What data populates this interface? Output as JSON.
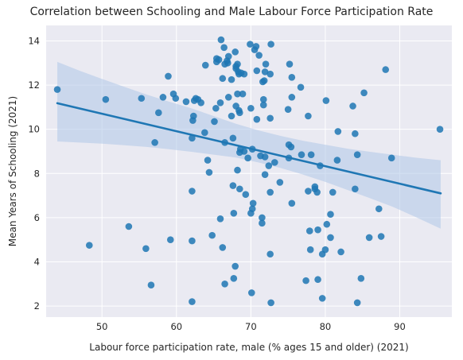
{
  "chart_data": {
    "type": "scatter",
    "title": "Correlation between Schooling and Male Labour Force Participation Rate",
    "xlabel": "Labour force participation rate, male (% ages 15 and older) (2021)",
    "ylabel": "Mean Years of Schooling (2021)",
    "xlim": [
      42.5,
      97.0
    ],
    "ylim": [
      1.5,
      14.7
    ],
    "xticks": [
      50,
      60,
      70,
      80,
      90
    ],
    "yticks": [
      2,
      4,
      6,
      8,
      10,
      12,
      14
    ],
    "grid": true,
    "colors": {
      "points": "#1f77b4",
      "regression_line": "#1f77b4",
      "confidence_band": "#aec7e8",
      "plot_background": "#eaeaf2",
      "grid": "#ffffff"
    },
    "regression": {
      "x": [
        44.0,
        95.5
      ],
      "y": [
        11.18,
        7.1
      ]
    },
    "confidence_band": {
      "x": [
        44.0,
        47.0,
        50.0,
        53.0,
        56.0,
        59.0,
        62.0,
        65.0,
        68.0,
        71.0,
        74.0,
        77.0,
        80.0,
        83.0,
        86.0,
        89.0,
        92.0,
        95.5
      ],
      "upper": [
        13.05,
        12.65,
        12.28,
        11.92,
        11.57,
        11.25,
        10.95,
        10.6,
        10.25,
        9.95,
        9.7,
        9.48,
        9.3,
        9.12,
        8.98,
        8.85,
        8.72,
        8.6
      ],
      "lower": [
        9.45,
        9.4,
        9.35,
        9.28,
        9.2,
        9.1,
        8.98,
        8.85,
        8.72,
        8.5,
        8.25,
        7.95,
        7.62,
        7.25,
        6.88,
        6.5,
        6.05,
        5.5
      ]
    },
    "points": [
      [
        44.0,
        11.8
      ],
      [
        48.3,
        4.75
      ],
      [
        50.5,
        11.35
      ],
      [
        53.6,
        5.6
      ],
      [
        55.3,
        11.4
      ],
      [
        55.9,
        4.6
      ],
      [
        56.6,
        2.95
      ],
      [
        57.1,
        9.4
      ],
      [
        57.6,
        10.75
      ],
      [
        58.2,
        11.45
      ],
      [
        58.9,
        12.4
      ],
      [
        59.2,
        5.0
      ],
      [
        59.6,
        11.6
      ],
      [
        59.9,
        11.4
      ],
      [
        61.3,
        11.25
      ],
      [
        62.1,
        9.6
      ],
      [
        62.1,
        7.2
      ],
      [
        62.1,
        4.95
      ],
      [
        62.1,
        2.2
      ],
      [
        62.2,
        10.4
      ],
      [
        62.3,
        10.6
      ],
      [
        62.4,
        11.3
      ],
      [
        62.6,
        11.4
      ],
      [
        62.9,
        11.35
      ],
      [
        63.3,
        11.2
      ],
      [
        63.8,
        9.85
      ],
      [
        63.9,
        12.9
      ],
      [
        64.2,
        8.6
      ],
      [
        64.4,
        8.05
      ],
      [
        64.8,
        5.2
      ],
      [
        65.1,
        10.35
      ],
      [
        65.3,
        10.95
      ],
      [
        65.4,
        13.05
      ],
      [
        65.4,
        13.2
      ],
      [
        65.7,
        13.15
      ],
      [
        65.9,
        11.2
      ],
      [
        65.9,
        5.95
      ],
      [
        66.0,
        14.05
      ],
      [
        66.2,
        4.65
      ],
      [
        66.2,
        12.3
      ],
      [
        66.4,
        13.7
      ],
      [
        66.5,
        12.95
      ],
      [
        66.5,
        9.4
      ],
      [
        66.5,
        3.0
      ],
      [
        66.8,
        13.1
      ],
      [
        66.9,
        13.0
      ],
      [
        67.0,
        13.3
      ],
      [
        67.0,
        11.45
      ],
      [
        67.4,
        12.25
      ],
      [
        67.4,
        10.6
      ],
      [
        67.6,
        9.6
      ],
      [
        67.6,
        7.45
      ],
      [
        67.7,
        6.2
      ],
      [
        67.7,
        3.25
      ],
      [
        67.9,
        3.8
      ],
      [
        67.9,
        13.5
      ],
      [
        68.0,
        12.85
      ],
      [
        68.0,
        12.75
      ],
      [
        68.0,
        11.05
      ],
      [
        68.2,
        12.95
      ],
      [
        68.2,
        11.6
      ],
      [
        68.2,
        8.15
      ],
      [
        68.3,
        12.6
      ],
      [
        68.4,
        12.5
      ],
      [
        68.4,
        10.85
      ],
      [
        68.5,
        10.75
      ],
      [
        68.5,
        8.95
      ],
      [
        68.5,
        7.3
      ],
      [
        68.6,
        9.1
      ],
      [
        68.7,
        12.55
      ],
      [
        68.9,
        11.6
      ],
      [
        69.1,
        12.5
      ],
      [
        69.1,
        9.0
      ],
      [
        69.3,
        7.05
      ],
      [
        69.6,
        8.7
      ],
      [
        69.9,
        13.85
      ],
      [
        70.0,
        10.95
      ],
      [
        70.0,
        6.2
      ],
      [
        70.1,
        2.6
      ],
      [
        70.2,
        6.4
      ],
      [
        70.2,
        9.1
      ],
      [
        70.3,
        6.65
      ],
      [
        70.5,
        13.6
      ],
      [
        70.7,
        13.75
      ],
      [
        70.8,
        10.45
      ],
      [
        70.8,
        12.65
      ],
      [
        71.1,
        13.35
      ],
      [
        71.3,
        8.8
      ],
      [
        71.5,
        6.0
      ],
      [
        71.5,
        5.75
      ],
      [
        71.6,
        12.15
      ],
      [
        71.7,
        11.35
      ],
      [
        71.7,
        11.1
      ],
      [
        71.8,
        12.2
      ],
      [
        71.9,
        12.6
      ],
      [
        71.9,
        8.75
      ],
      [
        71.9,
        7.95
      ],
      [
        72.0,
        12.95
      ],
      [
        72.4,
        8.35
      ],
      [
        72.6,
        12.5
      ],
      [
        72.6,
        10.5
      ],
      [
        72.6,
        7.15
      ],
      [
        72.6,
        4.35
      ],
      [
        72.7,
        2.15
      ],
      [
        72.7,
        13.85
      ],
      [
        73.2,
        8.5
      ],
      [
        73.9,
        7.6
      ],
      [
        75.0,
        10.9
      ],
      [
        75.1,
        8.7
      ],
      [
        75.1,
        9.3
      ],
      [
        75.2,
        12.95
      ],
      [
        75.4,
        9.2
      ],
      [
        75.5,
        12.35
      ],
      [
        75.5,
        6.65
      ],
      [
        75.5,
        11.45
      ],
      [
        76.7,
        11.9
      ],
      [
        76.8,
        8.85
      ],
      [
        77.4,
        3.15
      ],
      [
        77.7,
        10.6
      ],
      [
        77.7,
        7.2
      ],
      [
        77.9,
        5.4
      ],
      [
        78.0,
        4.55
      ],
      [
        78.1,
        8.85
      ],
      [
        78.6,
        7.4
      ],
      [
        78.6,
        7.3
      ],
      [
        78.9,
        7.15
      ],
      [
        79.0,
        5.45
      ],
      [
        79.0,
        3.2
      ],
      [
        79.3,
        8.35
      ],
      [
        79.6,
        4.35
      ],
      [
        79.6,
        2.35
      ],
      [
        80.0,
        4.55
      ],
      [
        80.1,
        11.3
      ],
      [
        80.2,
        5.7
      ],
      [
        80.7,
        6.15
      ],
      [
        80.7,
        5.1
      ],
      [
        81.0,
        7.15
      ],
      [
        81.6,
        8.6
      ],
      [
        81.7,
        9.9
      ],
      [
        82.1,
        4.45
      ],
      [
        83.7,
        11.05
      ],
      [
        84.0,
        9.8
      ],
      [
        84.0,
        7.3
      ],
      [
        84.3,
        8.85
      ],
      [
        84.3,
        2.15
      ],
      [
        84.8,
        3.25
      ],
      [
        85.2,
        11.65
      ],
      [
        85.9,
        5.1
      ],
      [
        87.2,
        6.4
      ],
      [
        87.5,
        5.15
      ],
      [
        88.1,
        12.7
      ],
      [
        88.9,
        8.7
      ],
      [
        95.4,
        10.0
      ]
    ]
  }
}
